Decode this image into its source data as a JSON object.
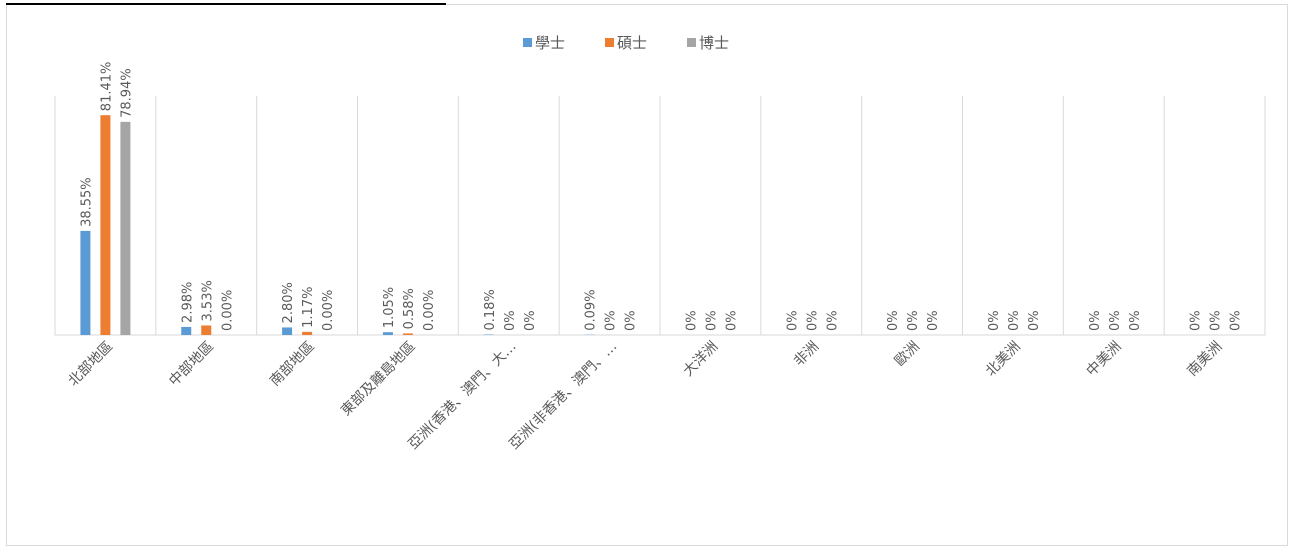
{
  "chart_data": {
    "type": "bar",
    "title": "",
    "xlabel": "",
    "ylabel": "",
    "ylim": [
      0,
      100
    ],
    "legend_position": "top",
    "grid": "vertical category separators",
    "categories": [
      "北部地區",
      "中部地區",
      "南部地區",
      "東部及離島地區",
      "亞洲(香港、澳門、大…",
      "亞洲(非香港、澳門、…",
      "大洋洲",
      "非洲",
      "歐洲",
      "北美洲",
      "中美洲",
      "南美洲"
    ],
    "series": [
      {
        "name": "學士",
        "color": "#5b9bd5",
        "values": [
          38.55,
          2.98,
          2.8,
          1.05,
          0.18,
          0.09,
          0,
          0,
          0,
          0,
          0,
          0
        ],
        "labels": [
          "38.55%",
          "2.98%",
          "2.80%",
          "1.05%",
          "0.18%",
          "0.09%",
          "0%",
          "0%",
          "0%",
          "0%",
          "0%",
          "0%"
        ]
      },
      {
        "name": "碩士",
        "color": "#ed7d31",
        "values": [
          81.41,
          3.53,
          1.17,
          0.58,
          0,
          0,
          0,
          0,
          0,
          0,
          0,
          0
        ],
        "labels": [
          "81.41%",
          "3.53%",
          "1.17%",
          "0.58%",
          "0%",
          "0%",
          "0%",
          "0%",
          "0%",
          "0%",
          "0%",
          "0%"
        ]
      },
      {
        "name": "博士",
        "color": "#a5a5a5",
        "values": [
          78.94,
          0.0,
          0.0,
          0.0,
          0,
          0,
          0,
          0,
          0,
          0,
          0,
          0
        ],
        "labels": [
          "78.94%",
          "0.00%",
          "0.00%",
          "0.00%",
          "0%",
          "0%",
          "0%",
          "0%",
          "0%",
          "0%",
          "0%",
          "0%"
        ]
      }
    ]
  }
}
